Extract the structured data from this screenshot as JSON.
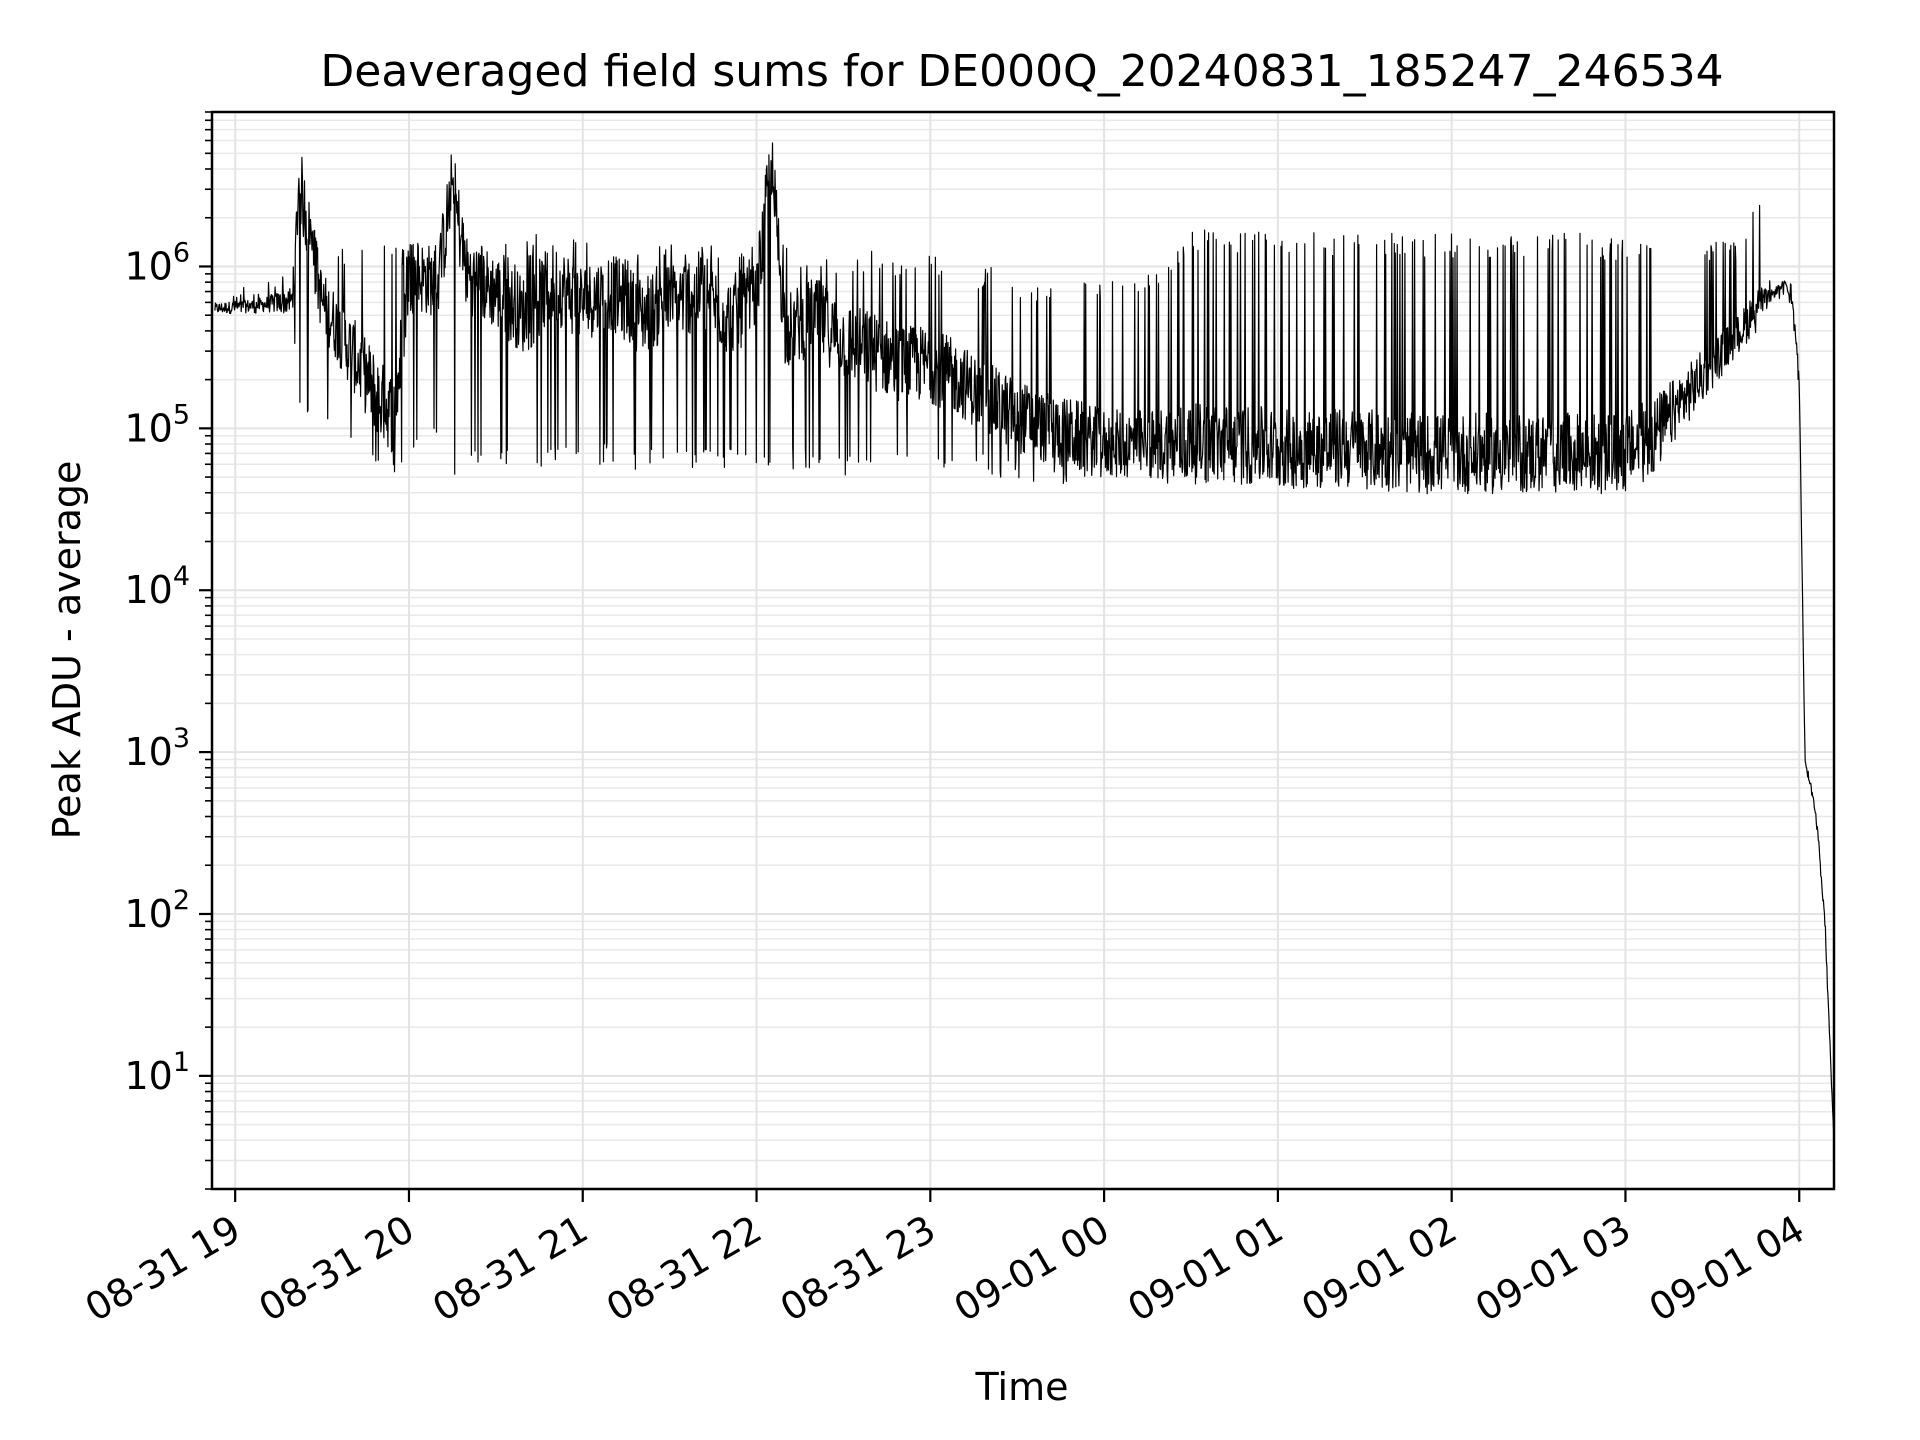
{
  "chart_data": {
    "type": "line",
    "title": "Deaveraged field sums for DE000Q_20240831_185247_246534",
    "xlabel": "Time",
    "ylabel": "Peak ADU - average",
    "yscale": "log",
    "ylim": [
      2,
      9000000
    ],
    "xlim": [
      "2024-08-31 18:52",
      "2024-09-01 04:12"
    ],
    "grid": "major and minor",
    "x_ticks": [
      "08-31 19",
      "08-31 20",
      "08-31 21",
      "08-31 22",
      "08-31 23",
      "09-01 00",
      "09-01 01",
      "09-01 02",
      "09-01 03",
      "09-01 04"
    ],
    "y_ticks": [
      {
        "base": "10",
        "exp": "1",
        "value": 10
      },
      {
        "base": "10",
        "exp": "2",
        "value": 100
      },
      {
        "base": "10",
        "exp": "3",
        "value": 1000
      },
      {
        "base": "10",
        "exp": "4",
        "value": 10000
      },
      {
        "base": "10",
        "exp": "5",
        "value": 100000
      },
      {
        "base": "10",
        "exp": "6",
        "value": 1000000
      }
    ],
    "series": [
      {
        "color": "#000000",
        "x": [
          "2024-08-31 18:53",
          "2024-08-31 19:00",
          "2024-08-31 19:10",
          "2024-08-31 19:20",
          "2024-08-31 19:22",
          "2024-08-31 19:30",
          "2024-08-31 19:40",
          "2024-08-31 19:50",
          "2024-08-31 19:55",
          "2024-08-31 20:00",
          "2024-08-31 20:10",
          "2024-08-31 20:15",
          "2024-08-31 20:20",
          "2024-08-31 20:30",
          "2024-08-31 20:40",
          "2024-08-31 20:50",
          "2024-08-31 21:00",
          "2024-08-31 21:10",
          "2024-08-31 21:20",
          "2024-08-31 21:30",
          "2024-08-31 21:40",
          "2024-08-31 21:50",
          "2024-08-31 22:00",
          "2024-08-31 22:05",
          "2024-08-31 22:10",
          "2024-08-31 22:20",
          "2024-08-31 22:30",
          "2024-08-31 22:40",
          "2024-08-31 22:50",
          "2024-08-31 23:00",
          "2024-08-31 23:10",
          "2024-08-31 23:20",
          "2024-08-31 23:30",
          "2024-08-31 23:40",
          "2024-08-31 23:50",
          "2024-09-01 00:00",
          "2024-09-01 00:15",
          "2024-09-01 00:30",
          "2024-09-01 00:45",
          "2024-09-01 01:00",
          "2024-09-01 01:15",
          "2024-09-01 01:30",
          "2024-09-01 01:45",
          "2024-09-01 02:00",
          "2024-09-01 02:15",
          "2024-09-01 02:30",
          "2024-09-01 02:45",
          "2024-09-01 03:00",
          "2024-09-01 03:10",
          "2024-09-01 03:20",
          "2024-09-01 03:30",
          "2024-09-01 03:40",
          "2024-09-01 03:45",
          "2024-09-01 03:50",
          "2024-09-01 03:55",
          "2024-09-01 03:58",
          "2024-09-01 04:00",
          "2024-09-01 04:02",
          "2024-09-01 04:05",
          "2024-09-01 04:07",
          "2024-09-01 04:09",
          "2024-09-01 04:11",
          "2024-09-01 04:12"
        ],
        "y": [
          550000,
          560000,
          580000,
          620000,
          3500000,
          600000,
          300000,
          150000,
          120000,
          900000,
          800000,
          3200000,
          900000,
          700000,
          500000,
          800000,
          600000,
          700000,
          500000,
          600000,
          700000,
          500000,
          600000,
          4500000,
          400000,
          500000,
          350000,
          300000,
          250000,
          250000,
          200000,
          150000,
          120000,
          100000,
          90000,
          80000,
          80000,
          80000,
          80000,
          75000,
          75000,
          75000,
          70000,
          70000,
          70000,
          70000,
          70000,
          70000,
          90000,
          150000,
          250000,
          400000,
          550000,
          650000,
          800000,
          550000,
          200000,
          900,
          500,
          250,
          80,
          10,
          4
        ],
        "min_envelope": [
          450000,
          480000,
          500000,
          300000,
          140000,
          90000,
          70000,
          50000,
          45000,
          60000,
          80000,
          50000,
          60000,
          60000,
          55000,
          60000,
          60000,
          60000,
          55000,
          55000,
          55000,
          55000,
          55000,
          45000,
          55000,
          55000,
          50000,
          50000,
          50000,
          50000,
          50000,
          50000,
          45000,
          45000,
          45000,
          50000,
          50000,
          50000,
          50000,
          50000,
          50000,
          50000,
          48000,
          48000,
          48000,
          48000,
          48000,
          48000,
          60000,
          120000,
          200000,
          330000,
          480000,
          600000,
          700000,
          500000,
          150000,
          800,
          400,
          200,
          60,
          8,
          4
        ],
        "max_envelope": [
          700000,
          800000,
          900000,
          1000000,
          3500000,
          1200000,
          1400000,
          1400000,
          1400000,
          1400000,
          1400000,
          3200000,
          1400000,
          1400000,
          1400000,
          2200000,
          1400000,
          1400000,
          1400000,
          1400000,
          1400000,
          1400000,
          1300000,
          4500000,
          1300000,
          1300000,
          1200000,
          1300000,
          1100000,
          1200000,
          1000000,
          1000000,
          900000,
          800000,
          900000,
          800000,
          900000,
          1700000,
          1700000,
          1700000,
          1600000,
          1600000,
          1600000,
          1600000,
          1600000,
          1600000,
          1600000,
          1500000,
          1500000,
          1400000,
          1500000,
          1500000,
          3500000,
          950000,
          850000,
          600000,
          250000,
          1000,
          600,
          300,
          100,
          12,
          4
        ]
      }
    ]
  }
}
